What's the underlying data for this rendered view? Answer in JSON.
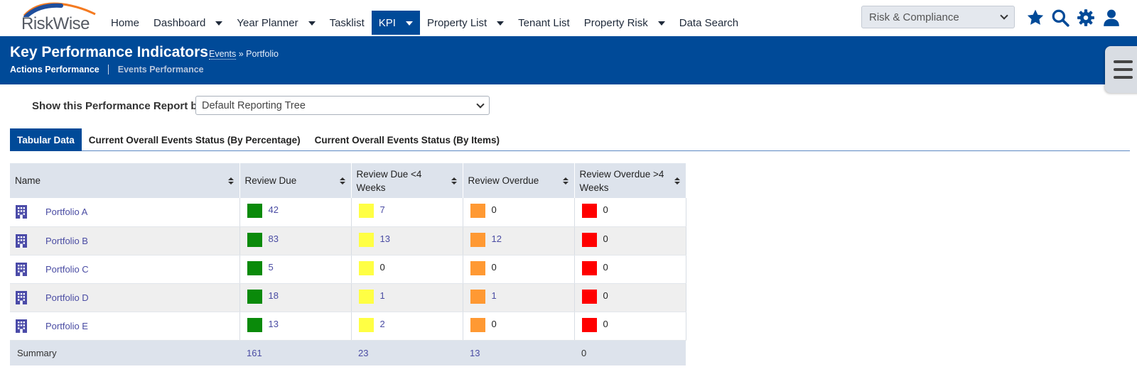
{
  "app": {
    "logo_text": "RiskWise",
    "accent": "#004a98"
  },
  "nav": {
    "items": [
      {
        "label": "Home",
        "dropdown": false,
        "active": false
      },
      {
        "label": "Dashboard",
        "dropdown": true,
        "active": false
      },
      {
        "label": "Year Planner",
        "dropdown": true,
        "active": false
      },
      {
        "label": "Tasklist",
        "dropdown": false,
        "active": false
      },
      {
        "label": "KPI",
        "dropdown": true,
        "active": true
      },
      {
        "label": "Property List",
        "dropdown": true,
        "active": false
      },
      {
        "label": "Tenant List",
        "dropdown": false,
        "active": false
      },
      {
        "label": "Property Risk",
        "dropdown": true,
        "active": false
      },
      {
        "label": "Data Search",
        "dropdown": false,
        "active": false
      }
    ],
    "module_select": "Risk & Compliance",
    "icons": [
      "star-icon",
      "search-icon",
      "gear-icon",
      "user-icon"
    ]
  },
  "header": {
    "title": "Key Performance Indicators",
    "breadcrumb_link": "Events",
    "breadcrumb_sep": " » ",
    "breadcrumb_current": "Portfolio",
    "subnav_active": "Actions Performance",
    "subnav_inactive": "Events Performance"
  },
  "report": {
    "label": "Show this Performance Report by:",
    "value": "Default Reporting Tree"
  },
  "tabs": [
    {
      "label": "Tabular Data",
      "active": true
    },
    {
      "label": "Current Overall Events Status (By Percentage)",
      "active": false
    },
    {
      "label": "Current Overall Events Status (By Items)",
      "active": false
    }
  ],
  "table": {
    "columns": [
      "Name",
      "Review Due",
      "Review Due <4 Weeks",
      "Review Overdue",
      "Review Overdue >4 Weeks"
    ],
    "status_colors": [
      "#0a8a0a",
      "#ffff44",
      "#ff9933",
      "#ff0000"
    ],
    "rows": [
      {
        "name": "Portfolio A",
        "values": [
          "42",
          "7",
          "0",
          "0"
        ]
      },
      {
        "name": "Portfolio B",
        "values": [
          "83",
          "13",
          "12",
          "0"
        ]
      },
      {
        "name": "Portfolio C",
        "values": [
          "5",
          "0",
          "0",
          "0"
        ]
      },
      {
        "name": "Portfolio D",
        "values": [
          "18",
          "1",
          "1",
          "0"
        ]
      },
      {
        "name": "Portfolio E",
        "values": [
          "13",
          "2",
          "0",
          "0"
        ]
      }
    ],
    "summary": {
      "label": "Summary",
      "values": [
        "161",
        "23",
        "13",
        "0"
      ]
    }
  }
}
